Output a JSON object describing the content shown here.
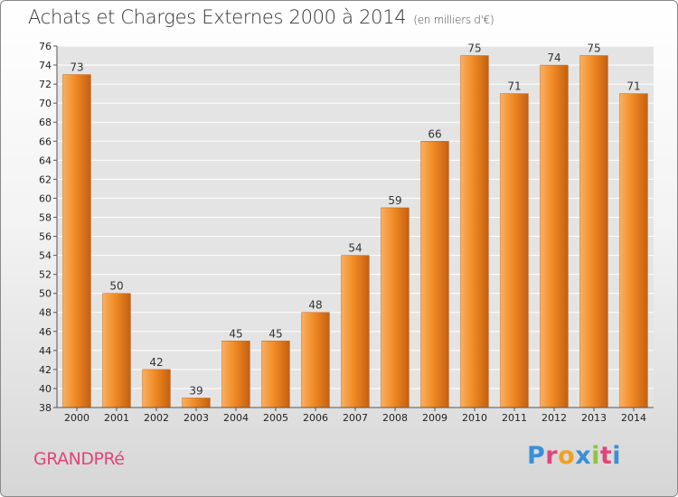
{
  "title": "Achats et Charges Externes 2000 à 2014",
  "unit_note": "(en milliers d'€)",
  "commune": "GRANDPRé",
  "logo": {
    "letters": [
      "P",
      "r",
      "o",
      "x",
      "i",
      "t",
      "i"
    ],
    "colors": [
      "#3a8fd6",
      "#e0457a",
      "#f0a020",
      "#3a8fd6",
      "#8cc63f",
      "#e0457a",
      "#3a8fd6"
    ]
  },
  "colors": {
    "bar": "#f08a24",
    "bar_highlight": "#f9b060",
    "bar_shadow": "#c45f10",
    "commune": "#e0457a"
  },
  "chart_data": {
    "type": "bar",
    "categories": [
      "2000",
      "2001",
      "2002",
      "2003",
      "2004",
      "2005",
      "2006",
      "2007",
      "2008",
      "2009",
      "2010",
      "2011",
      "2012",
      "2013",
      "2014"
    ],
    "values": [
      73,
      50,
      42,
      39,
      45,
      45,
      48,
      54,
      59,
      66,
      75,
      71,
      74,
      75,
      71
    ],
    "ylim": [
      38,
      76
    ],
    "yticks": [
      38,
      40,
      42,
      44,
      46,
      48,
      50,
      52,
      54,
      56,
      58,
      60,
      62,
      64,
      66,
      68,
      70,
      72,
      74,
      76
    ],
    "grid": true
  }
}
